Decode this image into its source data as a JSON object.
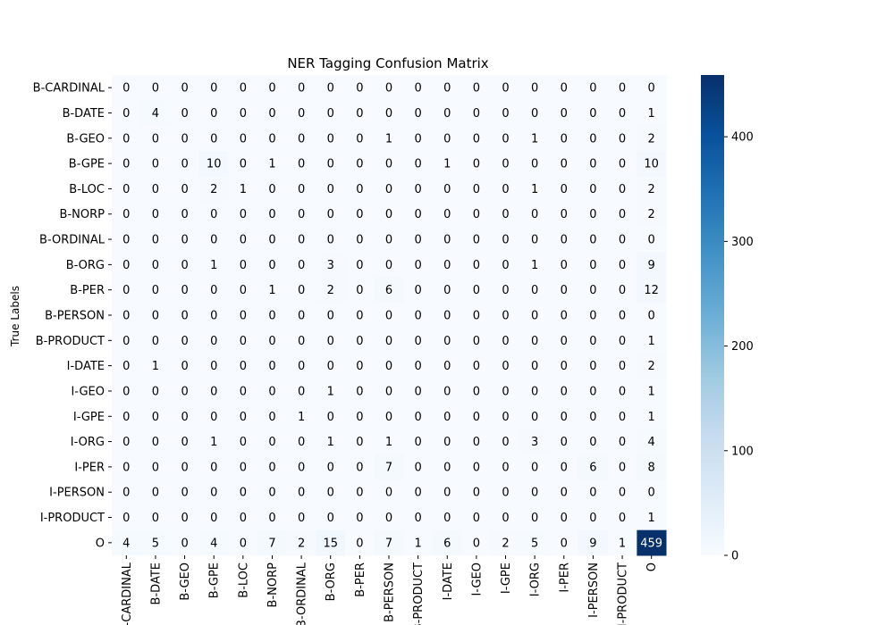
{
  "chart_data": {
    "type": "heatmap",
    "title": "NER Tagging Confusion Matrix",
    "ylabel": "True Labels",
    "xlabel": "",
    "row_labels": [
      "B-CARDINAL",
      "B-DATE",
      "B-GEO",
      "B-GPE",
      "B-LOC",
      "B-NORP",
      "B-ORDINAL",
      "B-ORG",
      "B-PER",
      "B-PERSON",
      "B-PRODUCT",
      "I-DATE",
      "I-GEO",
      "I-GPE",
      "I-ORG",
      "I-PER",
      "I-PERSON",
      "I-PRODUCT",
      "O"
    ],
    "col_labels": [
      "B-CARDINAL",
      "B-DATE",
      "B-GEO",
      "B-GPE",
      "B-LOC",
      "B-NORP",
      "B-ORDINAL",
      "B-ORG",
      "B-PER",
      "B-PERSON",
      "B-PRODUCT",
      "I-DATE",
      "I-GEO",
      "I-GPE",
      "I-ORG",
      "I-PER",
      "I-PERSON",
      "I-PRODUCT",
      "O"
    ],
    "values": [
      [
        0,
        0,
        0,
        0,
        0,
        0,
        0,
        0,
        0,
        0,
        0,
        0,
        0,
        0,
        0,
        0,
        0,
        0,
        0
      ],
      [
        0,
        4,
        0,
        0,
        0,
        0,
        0,
        0,
        0,
        0,
        0,
        0,
        0,
        0,
        0,
        0,
        0,
        0,
        1
      ],
      [
        0,
        0,
        0,
        0,
        0,
        0,
        0,
        0,
        0,
        1,
        0,
        0,
        0,
        0,
        1,
        0,
        0,
        0,
        2
      ],
      [
        0,
        0,
        0,
        10,
        0,
        1,
        0,
        0,
        0,
        0,
        0,
        1,
        0,
        0,
        0,
        0,
        0,
        0,
        10
      ],
      [
        0,
        0,
        0,
        2,
        1,
        0,
        0,
        0,
        0,
        0,
        0,
        0,
        0,
        0,
        1,
        0,
        0,
        0,
        2
      ],
      [
        0,
        0,
        0,
        0,
        0,
        0,
        0,
        0,
        0,
        0,
        0,
        0,
        0,
        0,
        0,
        0,
        0,
        0,
        2
      ],
      [
        0,
        0,
        0,
        0,
        0,
        0,
        0,
        0,
        0,
        0,
        0,
        0,
        0,
        0,
        0,
        0,
        0,
        0,
        0
      ],
      [
        0,
        0,
        0,
        1,
        0,
        0,
        0,
        3,
        0,
        0,
        0,
        0,
        0,
        0,
        1,
        0,
        0,
        0,
        9
      ],
      [
        0,
        0,
        0,
        0,
        0,
        1,
        0,
        2,
        0,
        6,
        0,
        0,
        0,
        0,
        0,
        0,
        0,
        0,
        12
      ],
      [
        0,
        0,
        0,
        0,
        0,
        0,
        0,
        0,
        0,
        0,
        0,
        0,
        0,
        0,
        0,
        0,
        0,
        0,
        0
      ],
      [
        0,
        0,
        0,
        0,
        0,
        0,
        0,
        0,
        0,
        0,
        0,
        0,
        0,
        0,
        0,
        0,
        0,
        0,
        1
      ],
      [
        0,
        1,
        0,
        0,
        0,
        0,
        0,
        0,
        0,
        0,
        0,
        0,
        0,
        0,
        0,
        0,
        0,
        0,
        2
      ],
      [
        0,
        0,
        0,
        0,
        0,
        0,
        0,
        1,
        0,
        0,
        0,
        0,
        0,
        0,
        0,
        0,
        0,
        0,
        1
      ],
      [
        0,
        0,
        0,
        0,
        0,
        0,
        1,
        0,
        0,
        0,
        0,
        0,
        0,
        0,
        0,
        0,
        0,
        0,
        1
      ],
      [
        0,
        0,
        0,
        1,
        0,
        0,
        0,
        1,
        0,
        1,
        0,
        0,
        0,
        0,
        3,
        0,
        0,
        0,
        4
      ],
      [
        0,
        0,
        0,
        0,
        0,
        0,
        0,
        0,
        0,
        7,
        0,
        0,
        0,
        0,
        0,
        0,
        6,
        0,
        8
      ],
      [
        0,
        0,
        0,
        0,
        0,
        0,
        0,
        0,
        0,
        0,
        0,
        0,
        0,
        0,
        0,
        0,
        0,
        0,
        0
      ],
      [
        0,
        0,
        0,
        0,
        0,
        0,
        0,
        0,
        0,
        0,
        0,
        0,
        0,
        0,
        0,
        0,
        0,
        0,
        1
      ],
      [
        4,
        5,
        0,
        4,
        0,
        7,
        2,
        15,
        0,
        7,
        1,
        6,
        0,
        2,
        5,
        0,
        9,
        1,
        459
      ]
    ],
    "colorbar": {
      "range": [
        0,
        459
      ],
      "ticks": [
        0,
        100,
        200,
        300,
        400
      ],
      "colormap": "Blues"
    },
    "colors": {
      "low": "#f7fbff",
      "high": "#08306b",
      "text_dark": "#000000",
      "text_light": "#ffffff"
    },
    "grid": false,
    "legend": "colorbar-right"
  }
}
